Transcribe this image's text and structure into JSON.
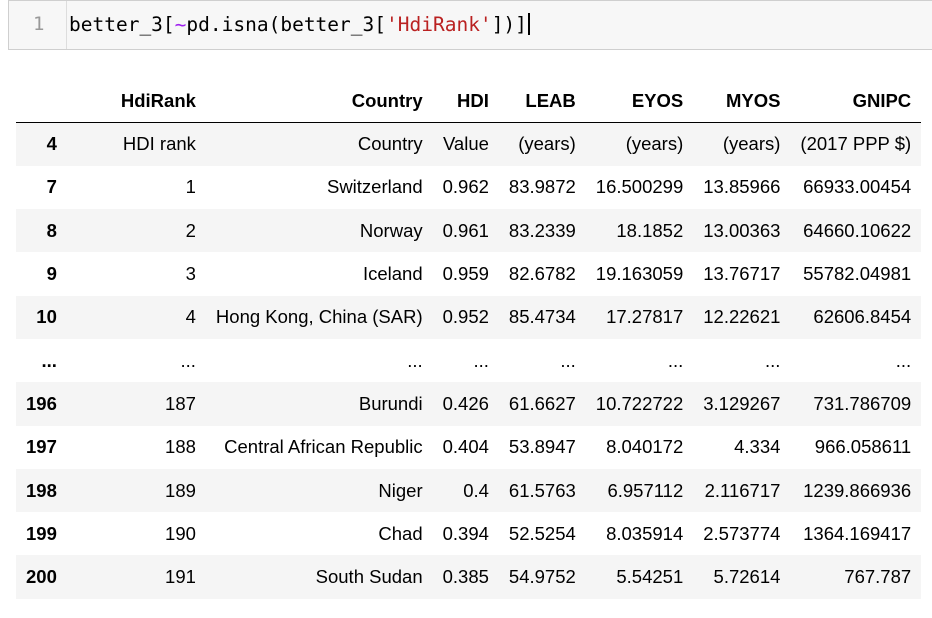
{
  "code_cell": {
    "line_number": "1",
    "tokens": {
      "t1": "better_3[",
      "t2": "~",
      "t3": "pd.isna(better_3[",
      "t4": "'HdiRank'",
      "t5": "])]"
    }
  },
  "table": {
    "columns": {
      "index": "",
      "hdirank": "HdiRank",
      "country": "Country",
      "hdi": "HDI",
      "leab": "LEAB",
      "eyos": "EYOS",
      "myos": "MYOS",
      "gnipc": "GNIPC"
    },
    "rows": [
      {
        "idx": "4",
        "rank": "HDI rank",
        "country": "Country",
        "hdi": "Value",
        "leab": "(years)",
        "eyos": "(years)",
        "myos": "(years)",
        "gnipc": "(2017 PPP $)"
      },
      {
        "idx": "7",
        "rank": "1",
        "country": "Switzerland",
        "hdi": "0.962",
        "leab": "83.9872",
        "eyos": "16.500299",
        "myos": "13.85966",
        "gnipc": "66933.00454"
      },
      {
        "idx": "8",
        "rank": "2",
        "country": "Norway",
        "hdi": "0.961",
        "leab": "83.2339",
        "eyos": "18.1852",
        "myos": "13.00363",
        "gnipc": "64660.10622"
      },
      {
        "idx": "9",
        "rank": "3",
        "country": "Iceland",
        "hdi": "0.959",
        "leab": "82.6782",
        "eyos": "19.163059",
        "myos": "13.76717",
        "gnipc": "55782.04981"
      },
      {
        "idx": "10",
        "rank": "4",
        "country": "Hong Kong, China (SAR)",
        "hdi": "0.952",
        "leab": "85.4734",
        "eyos": "17.27817",
        "myos": "12.22621",
        "gnipc": "62606.8454"
      },
      {
        "idx": "...",
        "rank": "...",
        "country": "...",
        "hdi": "...",
        "leab": "...",
        "eyos": "...",
        "myos": "...",
        "gnipc": "..."
      },
      {
        "idx": "196",
        "rank": "187",
        "country": "Burundi",
        "hdi": "0.426",
        "leab": "61.6627",
        "eyos": "10.722722",
        "myos": "3.129267",
        "gnipc": "731.786709"
      },
      {
        "idx": "197",
        "rank": "188",
        "country": "Central African Republic",
        "hdi": "0.404",
        "leab": "53.8947",
        "eyos": "8.040172",
        "myos": "4.334",
        "gnipc": "966.058611"
      },
      {
        "idx": "198",
        "rank": "189",
        "country": "Niger",
        "hdi": "0.4",
        "leab": "61.5763",
        "eyos": "6.957112",
        "myos": "2.116717",
        "gnipc": "1239.866936"
      },
      {
        "idx": "199",
        "rank": "190",
        "country": "Chad",
        "hdi": "0.394",
        "leab": "52.5254",
        "eyos": "8.035914",
        "myos": "2.573774",
        "gnipc": "1364.169417"
      },
      {
        "idx": "200",
        "rank": "191",
        "country": "South Sudan",
        "hdi": "0.385",
        "leab": "54.9752",
        "eyos": "5.54251",
        "myos": "5.72614",
        "gnipc": "767.787"
      }
    ]
  }
}
